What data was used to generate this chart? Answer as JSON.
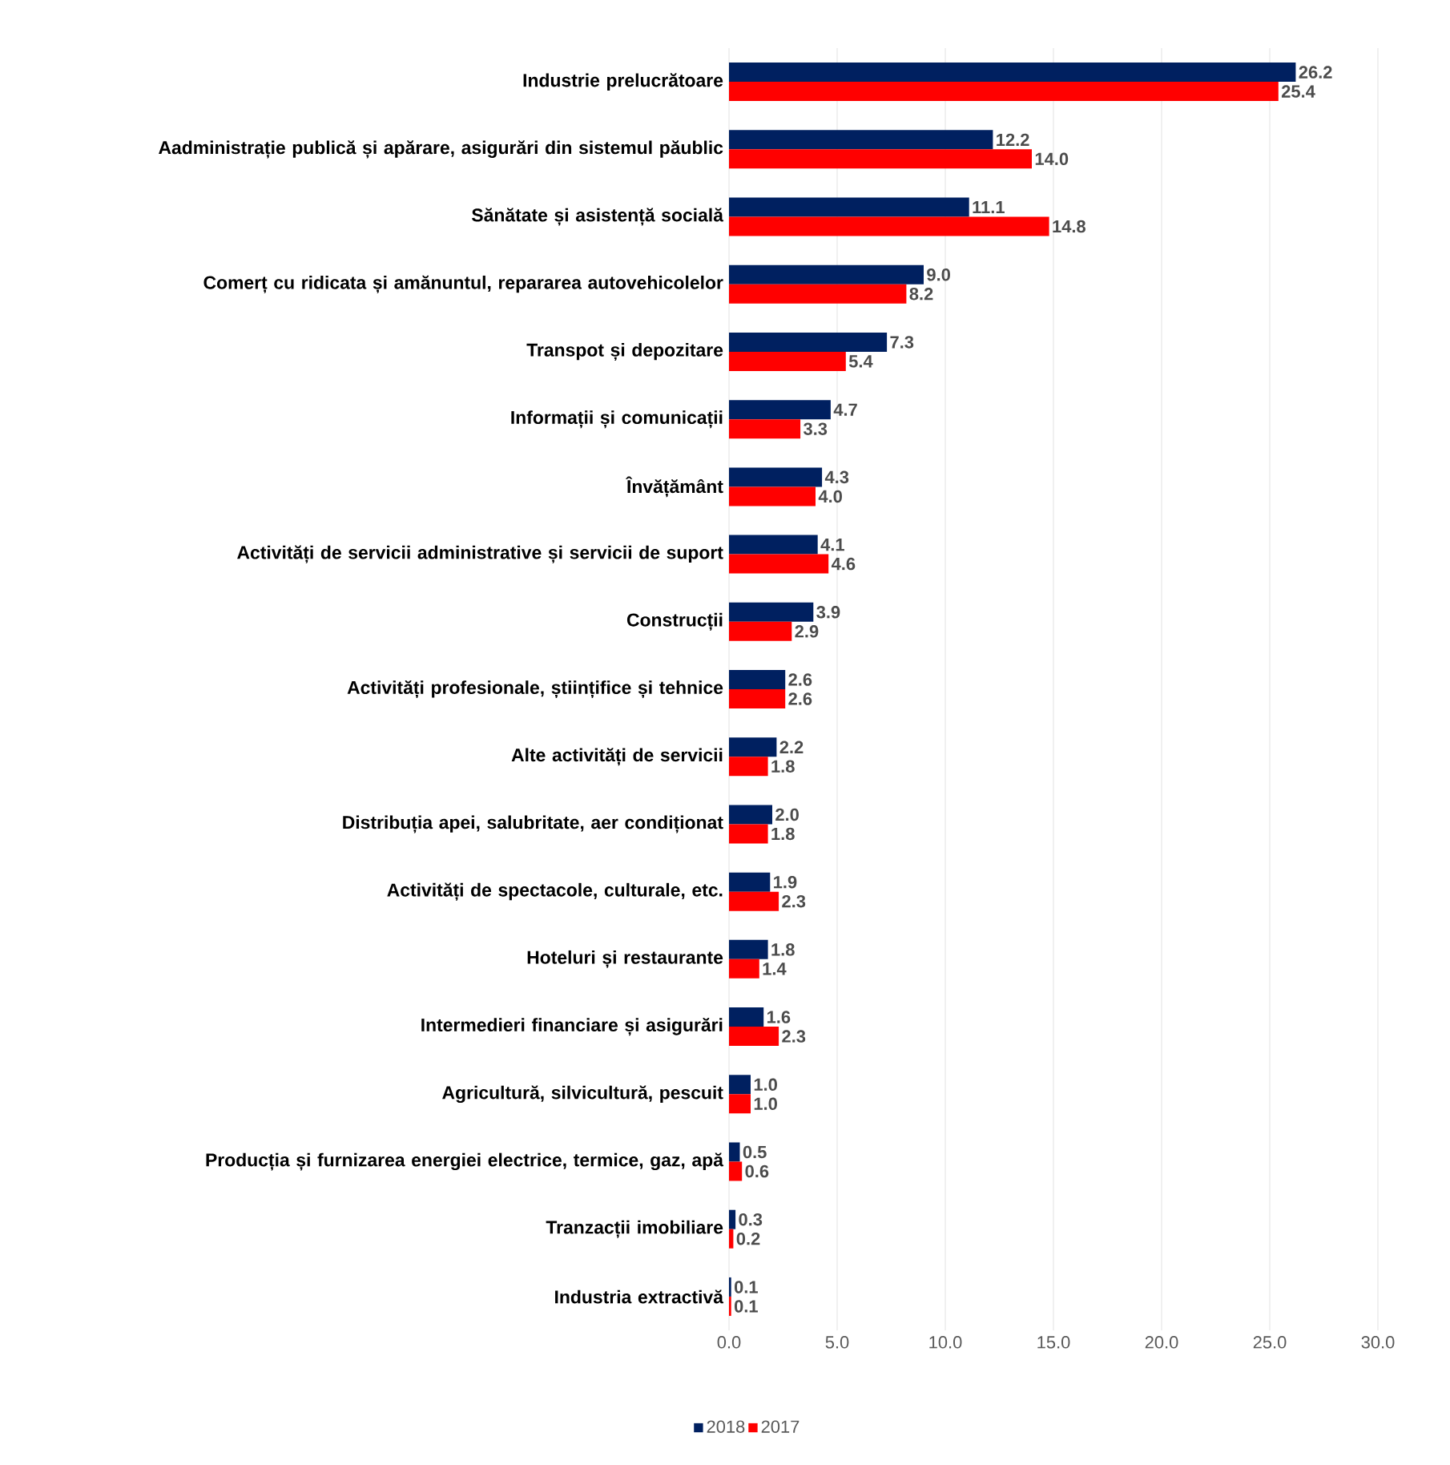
{
  "chart_data": {
    "type": "bar",
    "orientation": "horizontal",
    "categories": [
      "Industrie prelucrătoare",
      "Aadministrație publică și apărare, asigurări din sistemul păublic",
      "Sănătate și asistență socială",
      "Comerț cu ridicata și amănuntul, repararea autovehicolelor",
      "Transpot și depozitare",
      "Informații și comunicații",
      "Învățământ",
      "Activități de servicii administrative și servicii de suport",
      "Construcții",
      "Activități profesionale, științifice și tehnice",
      "Alte activități de servicii",
      "Distribuția apei, salubritate, aer condiționat",
      "Activități de spectacole, culturale, etc.",
      "Hoteluri și restaurante",
      "Intermedieri financiare și asigurări",
      "Agricultură, silvicultură, pescuit",
      "Producția și furnizarea energiei electrice, termice, gaz, apă",
      "Tranzacții imobiliare",
      "Industria extractivă"
    ],
    "series": [
      {
        "name": "2018",
        "color": "#002060",
        "values": [
          26.2,
          12.2,
          11.1,
          9.0,
          7.3,
          4.7,
          4.3,
          4.1,
          3.9,
          2.6,
          2.2,
          2.0,
          1.9,
          1.8,
          1.6,
          1.0,
          0.5,
          0.3,
          0.1
        ],
        "value_labels": [
          "26.2",
          "12.2",
          "11.1",
          "9.0",
          "7.3",
          "4.7",
          "4.3",
          "4.1",
          "3.9",
          "2.6",
          "2.2",
          "2.0",
          "1.9",
          "1.8",
          "1.6",
          "1.0",
          "0.5",
          "0.3",
          "0.1"
        ]
      },
      {
        "name": "2017",
        "color": "#ff0000",
        "values": [
          25.4,
          14.0,
          14.8,
          8.2,
          5.4,
          3.3,
          4.0,
          4.6,
          2.9,
          2.6,
          1.8,
          1.8,
          2.3,
          1.4,
          2.3,
          1.0,
          0.6,
          0.2,
          0.1
        ],
        "value_labels": [
          "25.4",
          "14.0",
          "14.8",
          "8.2",
          "5.4",
          "3.3",
          "4.0",
          "4.6",
          "2.9",
          "2.6",
          "1.8",
          "1.8",
          "2.3",
          "1.4",
          "2.3",
          "1.0",
          "0.6",
          "0.2",
          "0.1"
        ]
      }
    ],
    "xlim": [
      0,
      30
    ],
    "xticks": [
      {
        "value": 0,
        "label": "0.0"
      },
      {
        "value": 5,
        "label": "5.0"
      },
      {
        "value": 10,
        "label": "10.0"
      },
      {
        "value": 15,
        "label": "15.0"
      },
      {
        "value": 20,
        "label": "20.0"
      },
      {
        "value": 25,
        "label": "25.0"
      },
      {
        "value": 30,
        "label": "30.0"
      }
    ],
    "grid": "x",
    "legend": "bottom"
  }
}
